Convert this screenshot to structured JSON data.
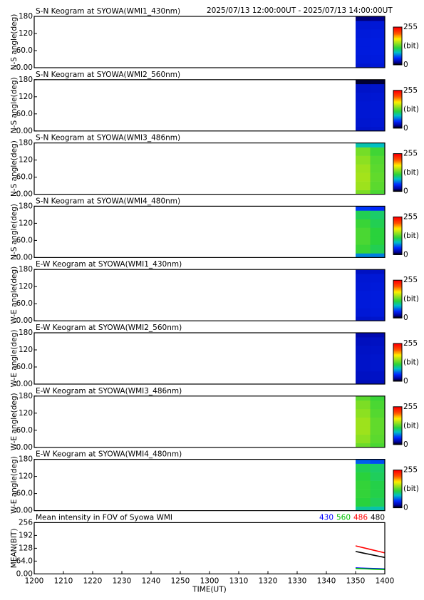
{
  "header": "2025/07/13 12:00:00UT - 2025/07/13 14:00:00UT",
  "chart_data": [
    {
      "type": "heatmap",
      "title": "S-N Keogram at SYOWA(WMI1_430nm)",
      "ylabel": "N-S angle(deg)",
      "xlim": [
        720,
        840
      ],
      "ylim": [
        0,
        180
      ],
      "yticks": [
        {
          "value": 0,
          "label": "0.00"
        },
        {
          "value": 60,
          "label": "60.0"
        },
        120,
        180
      ],
      "xbins": [
        830,
        835,
        840
      ],
      "ybins": [
        0,
        15,
        45,
        75,
        105,
        135,
        165,
        180
      ],
      "values": [
        [
          32,
          34
        ],
        [
          35,
          36
        ],
        [
          36,
          37
        ],
        [
          36,
          37
        ],
        [
          35,
          36
        ],
        [
          33,
          34
        ],
        [
          12,
          14
        ]
      ],
      "clim": [
        0,
        255
      ],
      "cticks": [
        0,
        255
      ],
      "clabel": "(bit)"
    },
    {
      "type": "heatmap",
      "title": "S-N Keogram at SYOWA(WMI2_560nm)",
      "ylabel": "N-S angle(deg)",
      "xlim": [
        720,
        840
      ],
      "ylim": [
        0,
        180
      ],
      "yticks": [
        {
          "value": 0,
          "label": "0.00"
        },
        {
          "value": 60,
          "label": "60.0"
        },
        120,
        180
      ],
      "xbins": [
        830,
        835,
        840
      ],
      "ybins": [
        0,
        15,
        45,
        75,
        105,
        135,
        165,
        180
      ],
      "values": [
        [
          30,
          31
        ],
        [
          32,
          33
        ],
        [
          33,
          34
        ],
        [
          33,
          34
        ],
        [
          32,
          33
        ],
        [
          30,
          31
        ],
        [
          5,
          6
        ]
      ],
      "clim": [
        0,
        255
      ],
      "cticks": [
        0,
        255
      ],
      "clabel": "(bit)"
    },
    {
      "type": "heatmap",
      "title": "S-N Keogram at SYOWA(WMI3_486nm)",
      "ylabel": "N-S angle(deg)",
      "xlim": [
        720,
        840
      ],
      "ylim": [
        0,
        180
      ],
      "yticks": [
        {
          "value": 0,
          "label": "0.00"
        },
        {
          "value": 60,
          "label": "60.0"
        },
        120,
        180
      ],
      "xbins": [
        830,
        835,
        840
      ],
      "ybins": [
        0,
        15,
        45,
        75,
        105,
        135,
        165,
        180
      ],
      "values": [
        [
          140,
          125
        ],
        [
          150,
          130
        ],
        [
          152,
          132
        ],
        [
          150,
          130
        ],
        [
          145,
          128
        ],
        [
          138,
          122
        ],
        [
          90,
          85
        ]
      ],
      "clim": [
        0,
        255
      ],
      "cticks": [
        0,
        255
      ],
      "clabel": "(bit)"
    },
    {
      "type": "heatmap",
      "title": "S-N Keogram at SYOWA(WMI4_480nm)",
      "ylabel": "N-S angle(deg)",
      "xlim": [
        720,
        840
      ],
      "ylim": [
        0,
        180
      ],
      "yticks": [
        {
          "value": 0,
          "label": "0.00"
        },
        {
          "value": 60,
          "label": "60.0"
        },
        120,
        180
      ],
      "xbins": [
        830,
        835,
        840
      ],
      "ybins": [
        0,
        15,
        45,
        75,
        105,
        135,
        165,
        180
      ],
      "values": [
        [
          70,
          68
        ],
        [
          120,
          110
        ],
        [
          125,
          115
        ],
        [
          125,
          115
        ],
        [
          120,
          110
        ],
        [
          110,
          105
        ],
        [
          50,
          45
        ]
      ],
      "clim": [
        0,
        255
      ],
      "cticks": [
        0,
        255
      ],
      "clabel": "(bit)"
    },
    {
      "type": "heatmap",
      "title": "E-W Keogram at SYOWA(WMI1_430nm)",
      "ylabel": "W-E angle(deg)",
      "xlim": [
        720,
        840
      ],
      "ylim": [
        0,
        180
      ],
      "yticks": [
        {
          "value": 0,
          "label": "0.00"
        },
        {
          "value": 60,
          "label": "60.0"
        },
        120,
        180
      ],
      "xbins": [
        830,
        835,
        840
      ],
      "ybins": [
        0,
        15,
        45,
        75,
        105,
        135,
        165,
        180
      ],
      "values": [
        [
          30,
          31
        ],
        [
          34,
          35
        ],
        [
          35,
          36
        ],
        [
          35,
          36
        ],
        [
          34,
          35
        ],
        [
          33,
          34
        ],
        [
          28,
          29
        ]
      ],
      "clim": [
        0,
        255
      ],
      "cticks": [
        0,
        255
      ],
      "clabel": "(bit)"
    },
    {
      "type": "heatmap",
      "title": "E-W Keogram at SYOWA(WMI2_560nm)",
      "ylabel": "W-E angle(deg)",
      "xlim": [
        720,
        840
      ],
      "ylim": [
        0,
        180
      ],
      "yticks": [
        {
          "value": 0,
          "label": "0.00"
        },
        {
          "value": 60,
          "label": "60.0"
        },
        120,
        180
      ],
      "xbins": [
        830,
        835,
        840
      ],
      "ybins": [
        0,
        15,
        45,
        75,
        105,
        135,
        165,
        180
      ],
      "values": [
        [
          25,
          26
        ],
        [
          28,
          29
        ],
        [
          30,
          31
        ],
        [
          30,
          31
        ],
        [
          29,
          30
        ],
        [
          27,
          28
        ],
        [
          22,
          23
        ]
      ],
      "clim": [
        0,
        255
      ],
      "cticks": [
        0,
        255
      ],
      "clabel": "(bit)"
    },
    {
      "type": "heatmap",
      "title": "E-W Keogram at SYOWA(WMI3_486nm)",
      "ylabel": "W-E angle(deg)",
      "xlim": [
        720,
        840
      ],
      "ylim": [
        0,
        180
      ],
      "yticks": [
        {
          "value": 0,
          "label": "0.00"
        },
        {
          "value": 60,
          "label": "60.0"
        },
        120,
        180
      ],
      "xbins": [
        830,
        835,
        840
      ],
      "ybins": [
        0,
        15,
        45,
        75,
        105,
        135,
        165,
        180
      ],
      "values": [
        [
          135,
          125
        ],
        [
          145,
          130
        ],
        [
          150,
          132
        ],
        [
          150,
          132
        ],
        [
          145,
          128
        ],
        [
          140,
          125
        ],
        [
          130,
          120
        ]
      ],
      "clim": [
        0,
        255
      ],
      "cticks": [
        0,
        255
      ],
      "clabel": "(bit)"
    },
    {
      "type": "heatmap",
      "title": "E-W Keogram at SYOWA(WMI4_480nm)",
      "ylabel": "W-E angle(deg)",
      "xlim": [
        720,
        840
      ],
      "ylim": [
        0,
        180
      ],
      "yticks": [
        {
          "value": 0,
          "label": "0.00"
        },
        {
          "value": 60,
          "label": "60.0"
        },
        120,
        180
      ],
      "xbins": [
        830,
        835,
        840
      ],
      "ybins": [
        0,
        15,
        45,
        75,
        105,
        135,
        165,
        180
      ],
      "values": [
        [
          95,
          90
        ],
        [
          115,
          108
        ],
        [
          118,
          112
        ],
        [
          118,
          112
        ],
        [
          115,
          108
        ],
        [
          110,
          105
        ],
        [
          60,
          55
        ]
      ],
      "clim": [
        0,
        255
      ],
      "cticks": [
        0,
        255
      ],
      "clabel": "(bit)"
    },
    {
      "type": "line",
      "title": "Mean intensity in FOV of Syowa WMI",
      "ylabel": "MEAN(BIT)",
      "xlabel": "TIME(UT)",
      "xlim": [
        720,
        840
      ],
      "ylim": [
        0,
        256
      ],
      "xticks": [
        {
          "value": 720,
          "label": "1200"
        },
        {
          "value": 730,
          "label": "1210"
        },
        {
          "value": 740,
          "label": "1220"
        },
        {
          "value": 750,
          "label": "1230"
        },
        {
          "value": 760,
          "label": "1240"
        },
        {
          "value": 770,
          "label": "1250"
        },
        {
          "value": 780,
          "label": "1300"
        },
        {
          "value": 790,
          "label": "1310"
        },
        {
          "value": 800,
          "label": "1320"
        },
        {
          "value": 810,
          "label": "1330"
        },
        {
          "value": 820,
          "label": "1340"
        },
        {
          "value": 830,
          "label": "1350"
        },
        {
          "value": 840,
          "label": "1400"
        }
      ],
      "yticks": [
        {
          "value": 0,
          "label": "0.00"
        },
        {
          "value": 64,
          "label": "64.0"
        },
        128,
        192,
        256
      ],
      "x": [
        830,
        832,
        834,
        836,
        838,
        840
      ],
      "series": [
        {
          "name": "430",
          "color": "#0000ff",
          "values": [
            30,
            29,
            28,
            27,
            26,
            25
          ]
        },
        {
          "name": "560",
          "color": "#00c000",
          "values": [
            27,
            26,
            25,
            24,
            23,
            22
          ]
        },
        {
          "name": "486",
          "color": "#ff0000",
          "values": [
            140,
            133,
            126,
            119,
            112,
            105
          ]
        },
        {
          "name": "480",
          "color": "#000000",
          "values": [
            112,
            106,
            100,
            94,
            88,
            82
          ]
        }
      ]
    }
  ]
}
